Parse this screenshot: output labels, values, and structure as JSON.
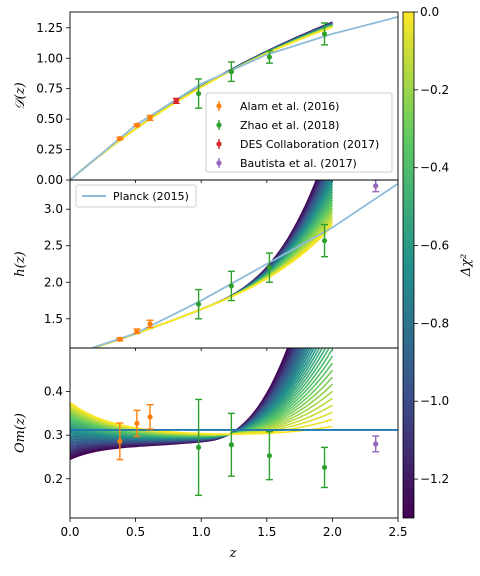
{
  "chart_data": [
    {
      "panel": "top",
      "type": "line",
      "ylabel": "𝒟(z)",
      "xlim": [
        0.0,
        2.5
      ],
      "ylim": [
        0.0,
        1.38
      ],
      "yticks": [
        "0.00",
        "0.25",
        "0.50",
        "0.75",
        "1.00",
        "1.25"
      ],
      "reference": {
        "name": "",
        "x": [
          0,
          0.5,
          1.0,
          1.5,
          2.0,
          2.5
        ],
        "y": [
          0,
          0.45,
          0.79,
          1.03,
          1.2,
          1.34
        ]
      },
      "band": {
        "x": [
          0,
          0.5,
          1.0,
          1.5,
          2.0
        ],
        "y": [
          0,
          0.45,
          0.77,
          0.99,
          1.16
        ]
      },
      "series": [
        {
          "name": "Alam et al. (2016)",
          "color": "#ff7f0e",
          "points": [
            {
              "x": 0.38,
              "y": 0.34,
              "err": 0.01
            },
            {
              "x": 0.51,
              "y": 0.45,
              "err": 0.01
            },
            {
              "x": 0.61,
              "y": 0.51,
              "err": 0.02
            }
          ]
        },
        {
          "name": "Zhao et al. (2018)",
          "color": "#2ca02c",
          "points": [
            {
              "x": 0.98,
              "y": 0.71,
              "err": 0.12
            },
            {
              "x": 1.23,
              "y": 0.89,
              "err": 0.08
            },
            {
              "x": 1.52,
              "y": 1.01,
              "err": 0.05
            },
            {
              "x": 1.94,
              "y": 1.2,
              "err": 0.09
            }
          ]
        },
        {
          "name": "DES Collaboration (2017)",
          "color": "#d62728",
          "points": [
            {
              "x": 0.81,
              "y": 0.65,
              "err": 0.02
            }
          ]
        },
        {
          "name": "Bautista et al. (2017)",
          "color": "#9467bd",
          "points": []
        }
      ]
    },
    {
      "panel": "middle",
      "type": "line",
      "ylabel": "h(z)",
      "xlim": [
        0.0,
        2.5
      ],
      "ylim": [
        1.1,
        3.4
      ],
      "yticks": [
        "1.5",
        "2.0",
        "2.5",
        "3.0"
      ],
      "reference": {
        "name": "Planck (2015)",
        "x": [
          0,
          0.5,
          1.0,
          1.5,
          2.0,
          2.5
        ],
        "y": [
          1.0,
          1.3,
          1.75,
          2.25,
          2.75,
          3.35
        ]
      },
      "series": [
        {
          "name": "Alam et al. (2016)",
          "color": "#ff7f0e",
          "points": [
            {
              "x": 0.38,
              "y": 1.22,
              "err": 0.02
            },
            {
              "x": 0.51,
              "y": 1.33,
              "err": 0.03
            },
            {
              "x": 0.61,
              "y": 1.43,
              "err": 0.05
            }
          ]
        },
        {
          "name": "Zhao et al. (2018)",
          "color": "#2ca02c",
          "points": [
            {
              "x": 0.98,
              "y": 1.7,
              "err": 0.2
            },
            {
              "x": 1.23,
              "y": 1.95,
              "err": 0.2
            },
            {
              "x": 1.52,
              "y": 2.2,
              "err": 0.2
            },
            {
              "x": 1.94,
              "y": 2.57,
              "err": 0.22
            }
          ]
        },
        {
          "name": "Bautista et al. (2017)",
          "color": "#9467bd",
          "points": [
            {
              "x": 2.33,
              "y": 3.32,
              "err": 0.08
            }
          ]
        }
      ]
    },
    {
      "panel": "bottom",
      "type": "line",
      "ylabel": "Om(z)",
      "xlabel": "z",
      "xlim": [
        0.0,
        2.5
      ],
      "ylim": [
        0.11,
        0.5
      ],
      "xticks": [
        "0.0",
        "0.5",
        "1.0",
        "1.5",
        "2.0",
        "2.5"
      ],
      "yticks": [
        "0.2",
        "0.3",
        "0.4"
      ],
      "reference": {
        "name": "",
        "value": 0.312
      },
      "series": [
        {
          "name": "Alam et al. (2016)",
          "color": "#ff7f0e",
          "points": [
            {
              "x": 0.38,
              "y": 0.286,
              "err": 0.042
            },
            {
              "x": 0.51,
              "y": 0.327,
              "err": 0.03
            },
            {
              "x": 0.61,
              "y": 0.342,
              "err": 0.028
            }
          ]
        },
        {
          "name": "Zhao et al. (2018)",
          "color": "#2ca02c",
          "points": [
            {
              "x": 0.98,
              "y": 0.272,
              "err": 0.11
            },
            {
              "x": 1.23,
              "y": 0.278,
              "err": 0.072
            },
            {
              "x": 1.52,
              "y": 0.253,
              "err": 0.055
            },
            {
              "x": 1.94,
              "y": 0.226,
              "err": 0.046
            }
          ]
        },
        {
          "name": "Bautista et al. (2017)",
          "color": "#9467bd",
          "points": [
            {
              "x": 2.33,
              "y": 0.28,
              "err": 0.018
            }
          ]
        }
      ]
    }
  ],
  "colorbar": {
    "label": "Δχ²",
    "range": [
      -1.3,
      0.0
    ],
    "ticks": [
      "0.0",
      "−0.2",
      "−0.4",
      "−0.6",
      "−0.8",
      "−1.0",
      "−1.2"
    ],
    "colormap": [
      "#440154",
      "#3b528b",
      "#21918c",
      "#5ec962",
      "#fde725"
    ]
  }
}
